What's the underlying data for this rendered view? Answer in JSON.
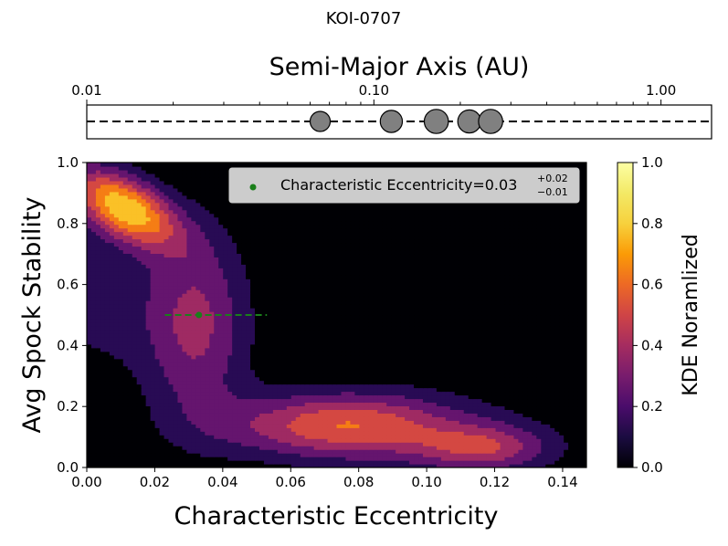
{
  "figure": {
    "suptitle": "KOI-0707"
  },
  "top_panel": {
    "xlabel": "Semi-Major Axis (AU)",
    "scale": "log",
    "xlim": [
      0.01,
      1.5
    ],
    "tick_labels": [
      {
        "value": 0.01,
        "label": "0.01"
      },
      {
        "value": 0.1,
        "label": "0.10"
      },
      {
        "value": 1.0,
        "label": "1.00"
      }
    ],
    "line_style": "dashed",
    "planet_color": "#808080",
    "planets": [
      {
        "a": 0.065,
        "size": 1.0
      },
      {
        "a": 0.115,
        "size": 1.1
      },
      {
        "a": 0.165,
        "size": 1.2
      },
      {
        "a": 0.215,
        "size": 1.15
      },
      {
        "a": 0.255,
        "size": 1.2
      }
    ]
  },
  "chart_data": {
    "type": "heatmap",
    "xlabel": "Characteristic Eccentricity",
    "ylabel": "Avg Spock Stability",
    "xlim": [
      0.0,
      0.147
    ],
    "ylim": [
      0.0,
      1.0
    ],
    "x_ticks": [
      "0.00",
      "0.02",
      "0.04",
      "0.06",
      "0.08",
      "0.10",
      "0.12",
      "0.14"
    ],
    "y_ticks": [
      "0.0",
      "0.2",
      "0.4",
      "0.6",
      "0.8",
      "1.0"
    ],
    "colormap": "inferno",
    "levels": [
      0.0,
      0.143,
      0.286,
      0.429,
      0.571,
      0.714,
      0.857,
      1.0
    ],
    "kde_components": [
      {
        "x": 0.011,
        "y": 0.855,
        "sx": 0.011,
        "sy": 0.09,
        "rho": -0.55,
        "w": 1.0
      },
      {
        "x": 0.032,
        "y": 0.47,
        "sx": 0.011,
        "sy": 0.22,
        "rho": 0.0,
        "w": 0.5
      },
      {
        "x": 0.075,
        "y": 0.14,
        "sx": 0.024,
        "sy": 0.075,
        "rho": 0.0,
        "w": 0.68
      },
      {
        "x": 0.117,
        "y": 0.065,
        "sx": 0.014,
        "sy": 0.055,
        "rho": 0.0,
        "w": 0.5
      },
      {
        "x": 0.003,
        "y": 0.55,
        "sx": 0.012,
        "sy": 0.18,
        "rho": 0.0,
        "w": 0.2
      },
      {
        "x": 0.095,
        "y": 0.11,
        "sx": 0.03,
        "sy": 0.12,
        "rho": 0.0,
        "w": 0.1
      }
    ],
    "marker": {
      "x": 0.033,
      "y": 0.5,
      "x_err_minus": 0.01,
      "x_err_plus": 0.02,
      "color": "#1a7f1a"
    },
    "legend": {
      "placement": "upper right",
      "text_main": "Characteristic Eccentricity=0.03",
      "text_sup": "+0.02",
      "text_sub": "−0.01"
    },
    "colorbar": {
      "label": "KDE Noramlized",
      "range": [
        0.0,
        1.0
      ],
      "ticks": [
        "0.0",
        "0.2",
        "0.4",
        "0.6",
        "0.8",
        "1.0"
      ]
    }
  }
}
